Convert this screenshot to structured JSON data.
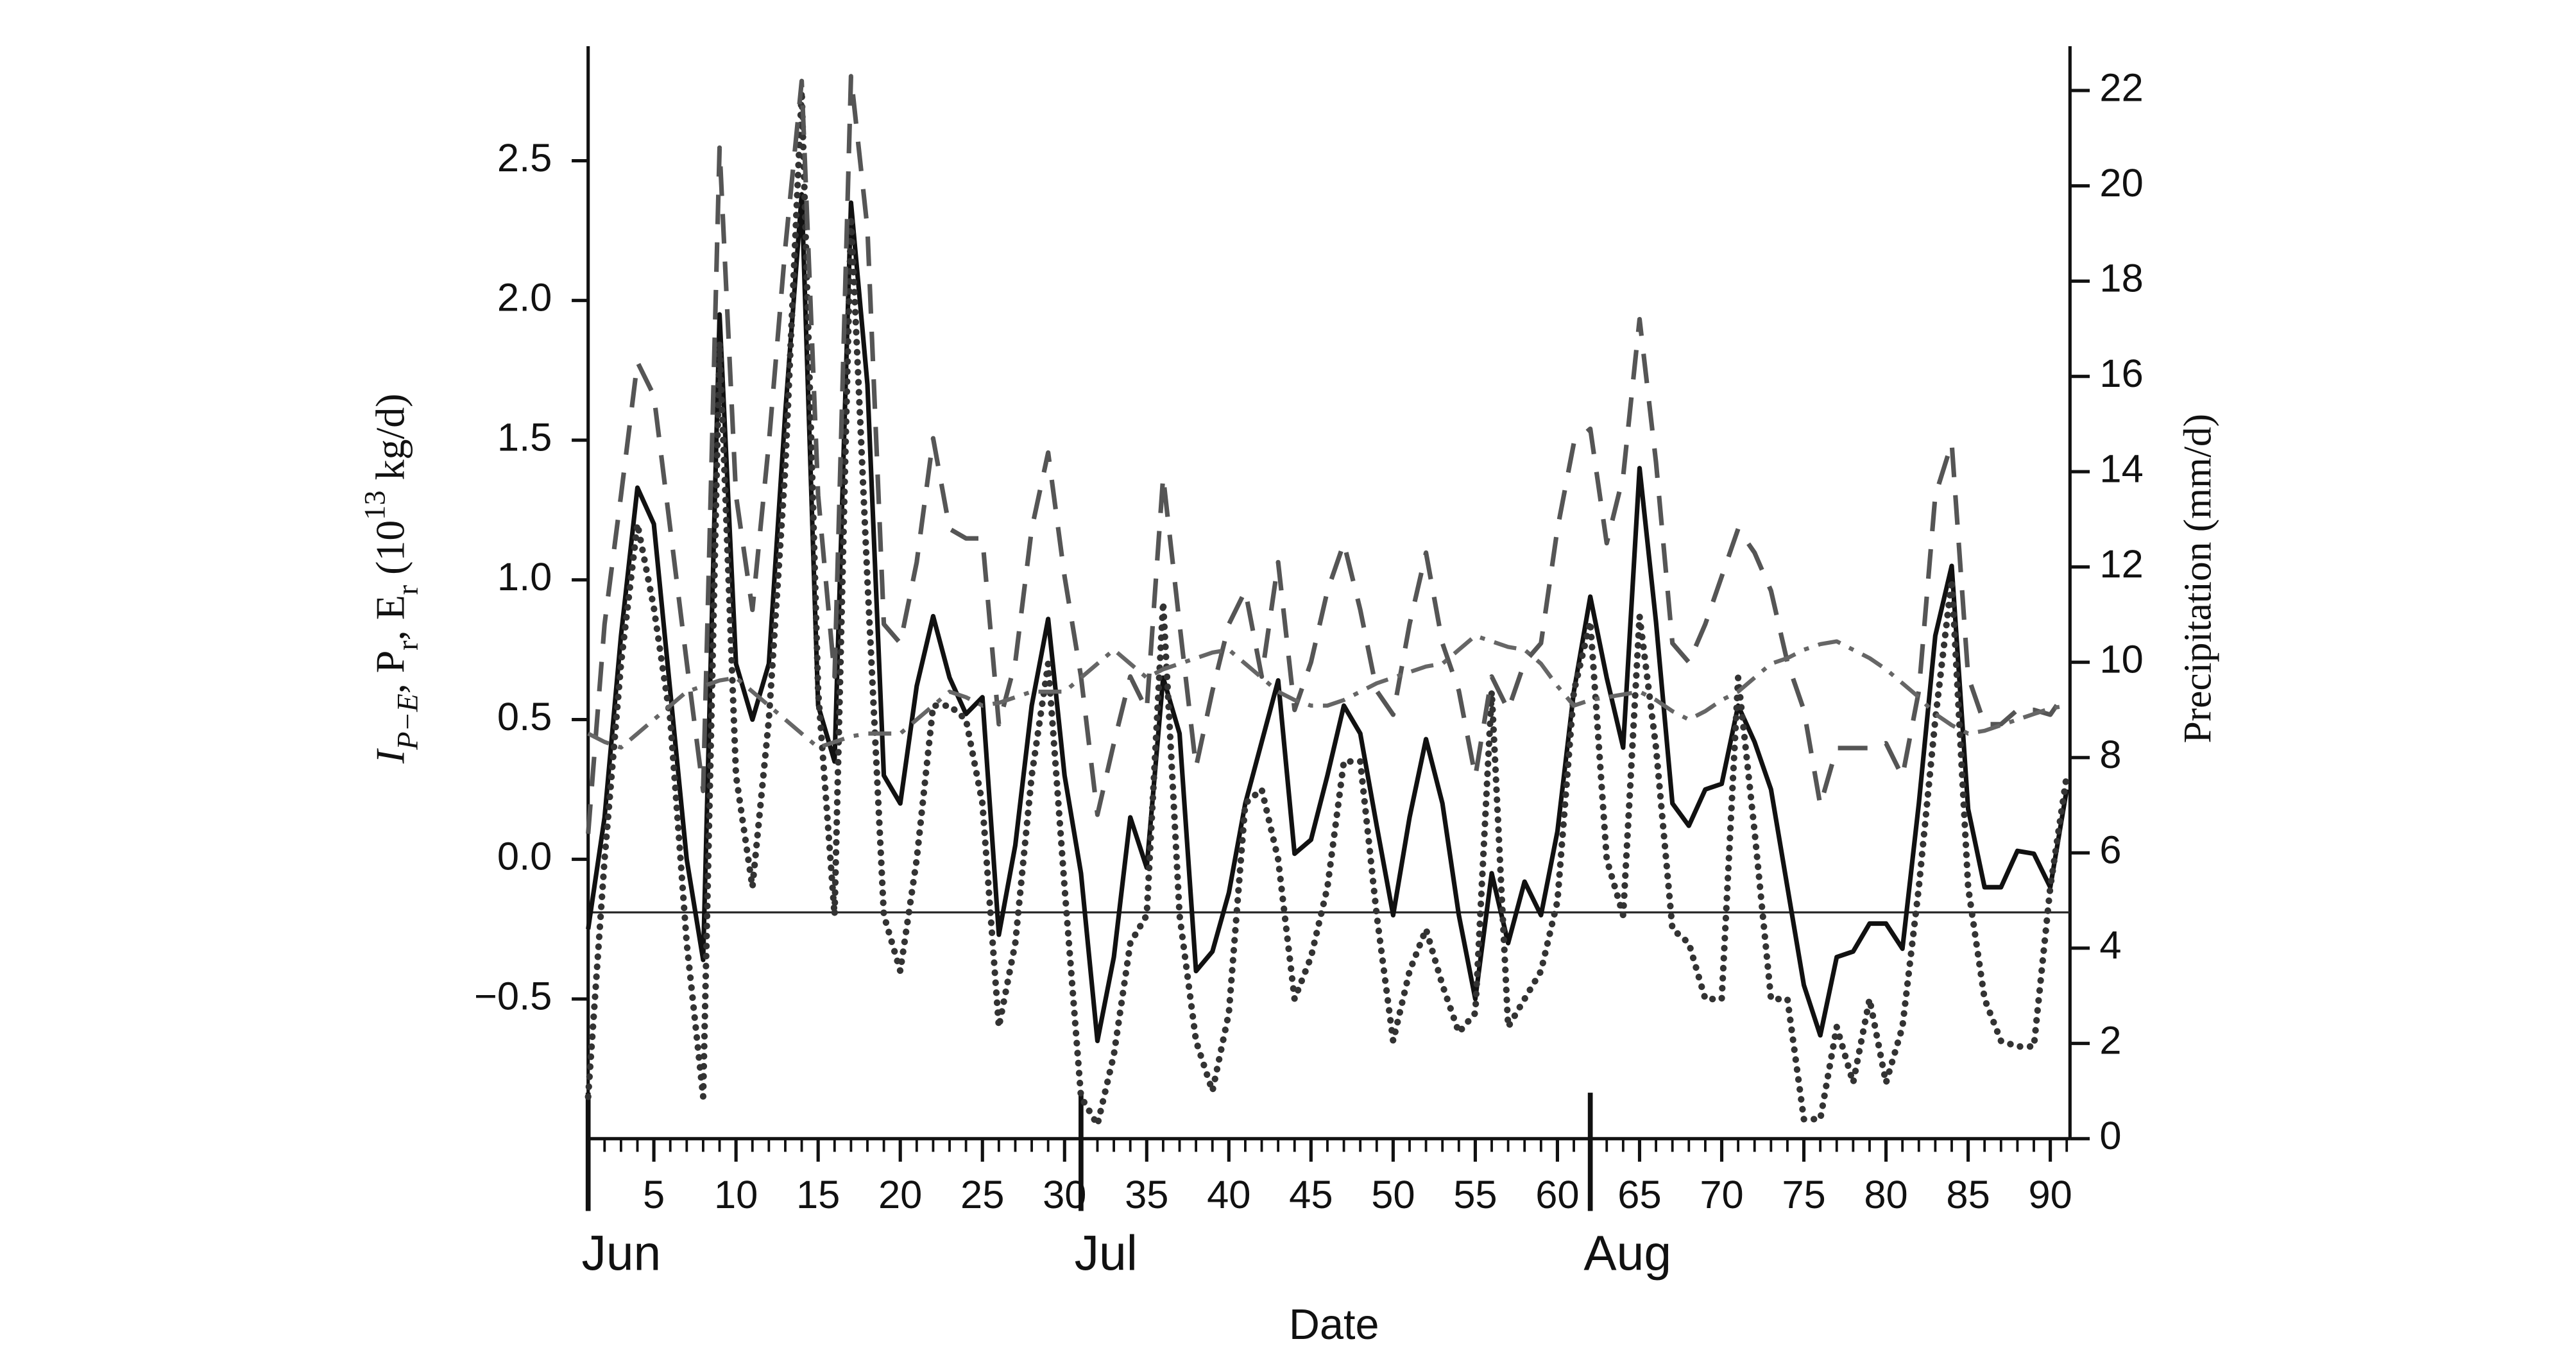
{
  "chart_data": {
    "type": "line",
    "xlabel": "Date",
    "ylabel": [
      "I",
      "P−E",
      ", P",
      "r",
      ", E",
      "r",
      " (10",
      "13",
      " kg/d)"
    ],
    "y2label": "Precipitation (mm/d)",
    "x": [
      1,
      2,
      3,
      4,
      5,
      6,
      7,
      8,
      9,
      10,
      11,
      12,
      13,
      14,
      15,
      16,
      17,
      18,
      19,
      20,
      21,
      22,
      23,
      24,
      25,
      26,
      27,
      28,
      29,
      30,
      31,
      32,
      33,
      34,
      35,
      36,
      37,
      38,
      39,
      40,
      41,
      42,
      43,
      44,
      45,
      46,
      47,
      48,
      49,
      50,
      51,
      52,
      53,
      54,
      55,
      56,
      57,
      58,
      59,
      60,
      61,
      62,
      63,
      64,
      65,
      66,
      67,
      68,
      69,
      70,
      71,
      72,
      73,
      74,
      75,
      76,
      77,
      78,
      79,
      80,
      81,
      82,
      83,
      84,
      85,
      86,
      87,
      88,
      89,
      90,
      91
    ],
    "xlim": [
      1,
      91.2
    ],
    "xticks": [
      5,
      10,
      15,
      20,
      25,
      30,
      35,
      40,
      45,
      50,
      55,
      60,
      65,
      70,
      75,
      80,
      85,
      90
    ],
    "month_labels": [
      {
        "value": 1,
        "label": "Jun"
      },
      {
        "value": 31,
        "label": "Jul"
      },
      {
        "value": 62,
        "label": "Aug"
      }
    ],
    "ylim": [
      -1.0,
      2.91
    ],
    "yticks": [
      {
        "value": -0.5,
        "label": "−0.5"
      },
      {
        "value": 0.0,
        "label": "0.0"
      },
      {
        "value": 0.5,
        "label": "0.5"
      },
      {
        "value": 1.0,
        "label": "1.0"
      },
      {
        "value": 1.5,
        "label": "1.5"
      },
      {
        "value": 2.0,
        "label": "2.0"
      },
      {
        "value": 2.5,
        "label": "2.5"
      }
    ],
    "y2lim": [
      0,
      22.93
    ],
    "y2ticks": [
      0,
      2,
      4,
      6,
      8,
      10,
      12,
      14,
      16,
      18,
      20,
      22
    ],
    "reference_line": -0.19,
    "series": [
      {
        "color": "#111111",
        "style": "solid",
        "values": [
          -0.25,
          0.15,
          0.8,
          1.33,
          1.2,
          0.6,
          0.0,
          -0.36,
          1.95,
          0.7,
          0.5,
          0.7,
          1.6,
          2.38,
          0.55,
          0.35,
          2.35,
          1.7,
          0.3,
          0.2,
          0.62,
          0.87,
          0.65,
          0.52,
          0.58,
          -0.27,
          0.05,
          0.55,
          0.86,
          0.3,
          -0.05,
          -0.65,
          -0.35,
          0.15,
          -0.03,
          0.65,
          0.45,
          -0.4,
          -0.33,
          -0.12,
          0.2,
          0.42,
          0.64,
          0.02,
          0.07,
          0.3,
          0.55,
          0.45,
          0.12,
          -0.2,
          0.15,
          0.43,
          0.2,
          -0.2,
          -0.5,
          -0.05,
          -0.3,
          -0.08,
          -0.2,
          0.1,
          0.6,
          0.94,
          0.65,
          0.4,
          1.4,
          0.85,
          0.2,
          0.12,
          0.25,
          0.27,
          0.55,
          0.42,
          0.25,
          -0.1,
          -0.45,
          -0.63,
          -0.35,
          -0.33,
          -0.23,
          -0.23,
          -0.32,
          0.2,
          0.8,
          1.05,
          0.18,
          -0.1,
          -0.1,
          0.03,
          0.02,
          -0.1,
          0.25
        ]
      },
      {
        "color": "#333333",
        "style": "dotted",
        "values": [
          -0.85,
          0.0,
          0.7,
          1.2,
          0.9,
          0.5,
          -0.3,
          -0.85,
          1.85,
          0.3,
          -0.1,
          0.5,
          1.4,
          2.75,
          0.6,
          -0.2,
          2.3,
          1.0,
          -0.2,
          -0.4,
          0.0,
          0.55,
          0.55,
          0.5,
          0.2,
          -0.6,
          -0.3,
          0.3,
          0.7,
          -0.1,
          -0.85,
          -0.95,
          -0.7,
          -0.3,
          -0.2,
          0.92,
          -0.2,
          -0.65,
          -0.83,
          -0.55,
          0.2,
          0.25,
          0.0,
          -0.5,
          -0.35,
          -0.1,
          0.35,
          0.35,
          -0.2,
          -0.65,
          -0.4,
          -0.25,
          -0.45,
          -0.62,
          -0.55,
          0.6,
          -0.6,
          -0.5,
          -0.4,
          -0.15,
          0.6,
          0.85,
          0.0,
          -0.2,
          0.87,
          0.4,
          -0.25,
          -0.3,
          -0.5,
          -0.5,
          0.65,
          0.1,
          -0.5,
          -0.5,
          -0.93,
          -0.93,
          -0.6,
          -0.8,
          -0.5,
          -0.8,
          -0.6,
          -0.1,
          0.5,
          1.0,
          -0.1,
          -0.5,
          -0.65,
          -0.67,
          -0.67,
          -0.1,
          0.3
        ]
      },
      {
        "color": "#555555",
        "style": "dashed",
        "axis": "y2",
        "values": [
          6.4,
          10.8,
          13.5,
          16.3,
          15.6,
          12.8,
          10.0,
          7.3,
          20.8,
          13.5,
          11.1,
          14.6,
          18.7,
          22.2,
          13.5,
          9.7,
          22.3,
          19.1,
          10.8,
          10.4,
          12.1,
          14.7,
          12.8,
          12.6,
          12.6,
          8.7,
          10.0,
          12.8,
          14.4,
          11.8,
          9.7,
          6.8,
          8.3,
          9.7,
          9.0,
          13.9,
          10.8,
          7.8,
          9.4,
          10.8,
          11.5,
          9.7,
          12.1,
          9.0,
          10.0,
          11.5,
          12.5,
          11.1,
          9.4,
          8.9,
          10.8,
          12.3,
          10.4,
          9.4,
          7.6,
          9.7,
          9.0,
          10.0,
          10.4,
          12.8,
          14.6,
          14.9,
          12.5,
          13.9,
          17.2,
          14.2,
          10.4,
          10.0,
          10.8,
          11.8,
          12.8,
          12.3,
          11.5,
          10.0,
          9.0,
          7.0,
          8.2,
          8.2,
          8.2,
          8.3,
          7.6,
          9.4,
          13.5,
          14.6,
          9.7,
          8.7,
          8.7,
          9.0,
          9.0,
          8.9,
          9.4
        ]
      },
      {
        "color": "#666666",
        "style": "dashdot",
        "values": [
          0.45,
          0.42,
          0.4,
          0.45,
          0.5,
          0.55,
          0.6,
          0.62,
          0.64,
          0.65,
          0.6,
          0.55,
          0.5,
          0.45,
          0.4,
          0.42,
          0.44,
          0.45,
          0.45,
          0.45,
          0.5,
          0.55,
          0.6,
          0.58,
          0.55,
          0.56,
          0.58,
          0.6,
          0.6,
          0.6,
          0.65,
          0.7,
          0.75,
          0.7,
          0.65,
          0.68,
          0.7,
          0.72,
          0.74,
          0.75,
          0.7,
          0.65,
          0.6,
          0.57,
          0.55,
          0.55,
          0.57,
          0.6,
          0.63,
          0.65,
          0.67,
          0.69,
          0.7,
          0.75,
          0.8,
          0.78,
          0.76,
          0.75,
          0.7,
          0.62,
          0.55,
          0.57,
          0.58,
          0.59,
          0.6,
          0.57,
          0.53,
          0.5,
          0.53,
          0.57,
          0.6,
          0.65,
          0.7,
          0.72,
          0.75,
          0.77,
          0.78,
          0.75,
          0.72,
          0.68,
          0.63,
          0.58,
          0.52,
          0.48,
          0.45,
          0.46,
          0.48,
          0.5,
          0.52,
          0.54,
          0.55
        ]
      }
    ]
  }
}
